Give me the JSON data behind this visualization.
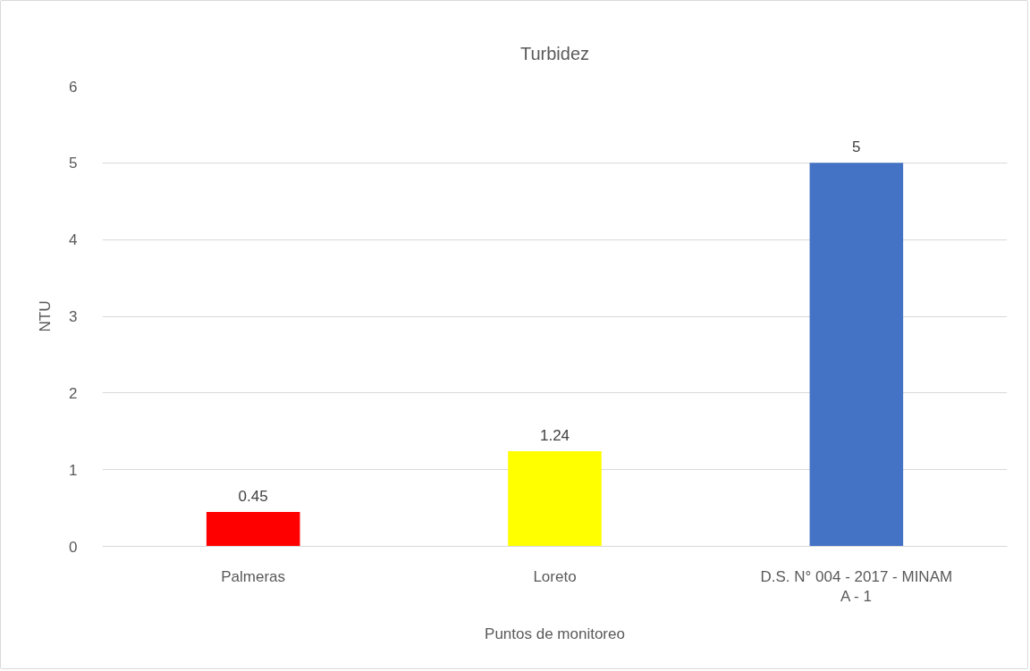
{
  "chart_data": {
    "type": "bar",
    "title": "Turbidez",
    "xlabel": "Puntos de monitoreo",
    "ylabel": "NTU",
    "categories": [
      "Palmeras",
      "Loreto",
      "D.S. N° 004 - 2017 - MINAM A - 1"
    ],
    "values": [
      0.45,
      1.24,
      5
    ],
    "colors": [
      "#ff0000",
      "#ffff00",
      "#4472c4"
    ],
    "ylim": [
      0,
      6
    ],
    "yticks": [
      0,
      1,
      2,
      3,
      4,
      5,
      6
    ],
    "grid": "y",
    "data_labels": true
  }
}
